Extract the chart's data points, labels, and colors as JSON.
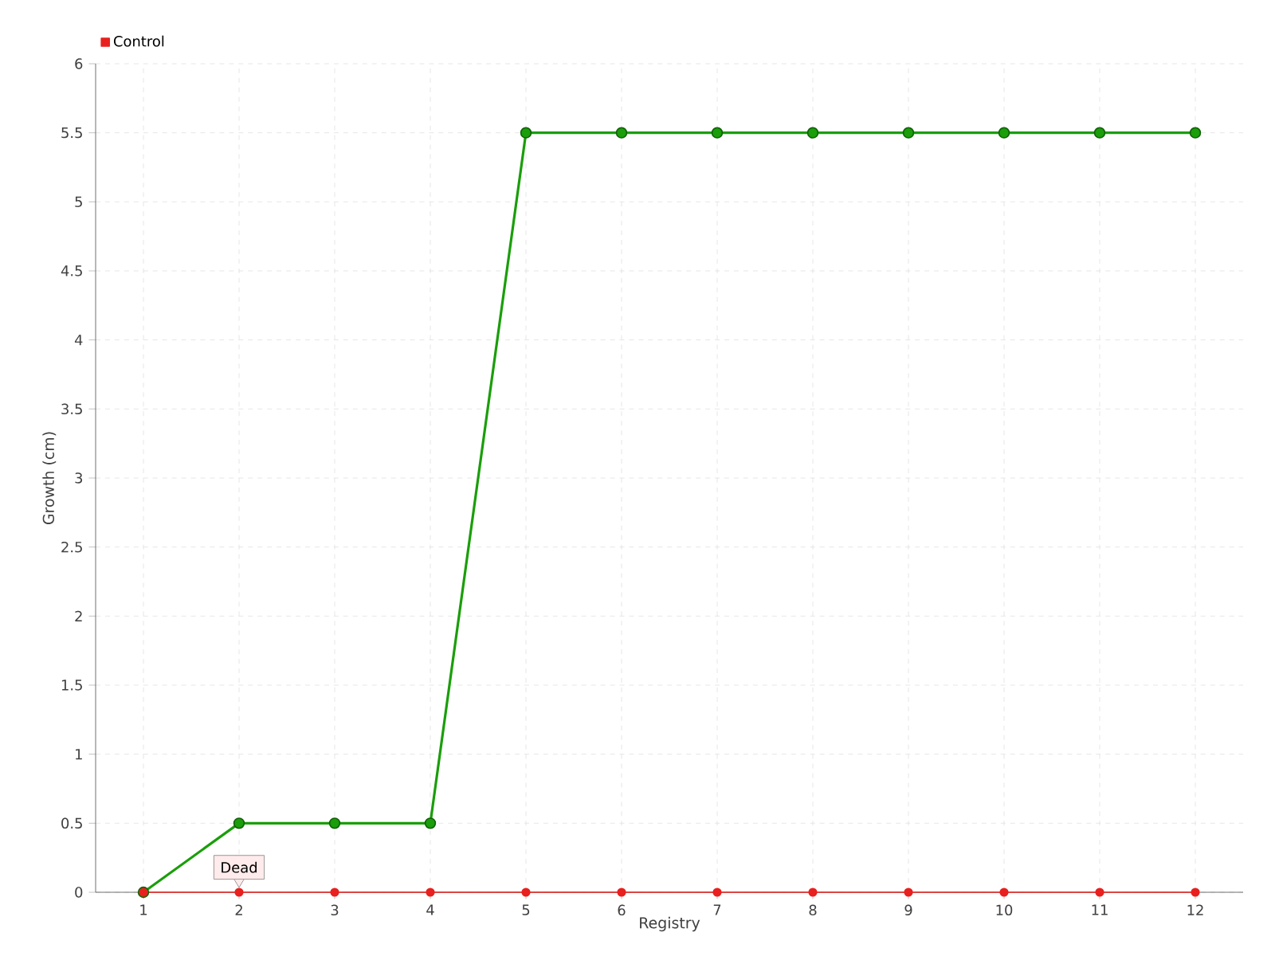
{
  "chart_data": {
    "type": "line",
    "xlabel": "Registry",
    "ylabel": "Growth (cm)",
    "categories": [
      "1",
      "2",
      "3",
      "4",
      "5",
      "6",
      "7",
      "8",
      "9",
      "10",
      "11",
      "12"
    ],
    "series": [
      {
        "color": "#1a9e0a",
        "values": [
          0,
          0.5,
          0.5,
          0.5,
          5.5,
          5.5,
          5.5,
          5.5,
          5.5,
          5.5,
          5.5,
          5.5
        ]
      },
      {
        "name": "Control",
        "color": "#e8201e",
        "values": [
          0,
          0,
          0,
          0,
          0,
          0,
          0,
          0,
          0,
          0,
          0,
          0
        ]
      }
    ],
    "ylim": [
      0,
      6
    ],
    "yticks": [
      0,
      0.5,
      1,
      1.5,
      2,
      2.5,
      3,
      3.5,
      4,
      4.5,
      5,
      5.5,
      6
    ],
    "grid": true,
    "legend": "top left",
    "marker": "circle",
    "line_style": "solid",
    "annotations": [
      {
        "text": "Dead",
        "x": "2",
        "y": 0
      }
    ]
  }
}
